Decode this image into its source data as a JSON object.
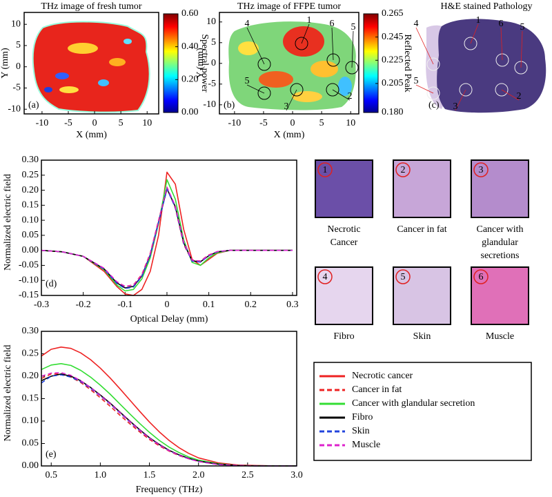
{
  "chart_data": [
    {
      "type": "image",
      "title": "THz image of fresh tumor",
      "panel_label": "(a)",
      "x_label": "X (mm)",
      "y_label": "Y (mm)",
      "xlim": [
        -13.4,
        12.2
      ],
      "ylim": [
        -11.1,
        12.8
      ],
      "xticks": [
        -10,
        -5,
        0,
        5,
        10
      ],
      "yticks": [
        -10,
        -5,
        0,
        5,
        10
      ],
      "colorbar": {
        "label": "Spectral power",
        "lim": [
          0,
          0.6
        ],
        "ticks": [
          {
            "value": 0,
            "label": "0.00"
          },
          {
            "value": 0.2,
            "label": "0.20"
          },
          {
            "value": 0.4,
            "label": "0.40"
          },
          {
            "value": 0.6,
            "label": "0.60"
          }
        ],
        "colormap": "jet"
      }
    },
    {
      "type": "image",
      "title": "THz image of FFPE tumor",
      "panel_label": "(b)",
      "x_label": "X (mm)",
      "y_label": "Y (mm)",
      "xlim": [
        -12.6,
        11.4
      ],
      "ylim": [
        -12.2,
        12.3
      ],
      "xticks": [
        -10,
        -5,
        0,
        5,
        10
      ],
      "yticks": [
        -10,
        -5,
        0,
        5,
        10
      ],
      "colorbar": {
        "label": "Reflected Peak",
        "lim": [
          0.18,
          0.265
        ],
        "ticks": [
          {
            "value": 0.18,
            "label": "0.180"
          },
          0.205,
          0.225,
          0.245,
          0.265
        ],
        "colormap": "jet"
      },
      "annotations": [
        "4",
        "1",
        "6",
        "5",
        "5",
        "3",
        "2"
      ]
    },
    {
      "type": "photo",
      "title": "H&E stained Pathology",
      "panel_label": "(c)",
      "annotations": [
        "4",
        "1",
        "6",
        "5",
        "5",
        "3",
        "2"
      ]
    },
    {
      "type": "line",
      "panel_label": "(d)",
      "x_label": "Optical Delay (mm)",
      "y_label": "Normalized electric field",
      "xlim": [
        -0.3,
        0.31
      ],
      "ylim": [
        -0.15,
        0.3
      ],
      "xticks": [
        -0.3,
        -0.2,
        -0.1,
        0,
        0.1,
        0.2,
        0.3
      ],
      "yticks": [
        -0.15,
        {
          "value": -0.1,
          "label": "-0.10"
        },
        -0.05,
        {
          "value": 0,
          "label": "0.00"
        },
        0.05,
        {
          "value": 0.1,
          "label": "0.10"
        },
        0.15,
        {
          "value": 0.2,
          "label": "0.20"
        },
        0.25,
        {
          "value": 0.3,
          "label": "0.30"
        }
      ],
      "x": [
        -0.3,
        -0.25,
        -0.2,
        -0.15,
        -0.12,
        -0.1,
        -0.08,
        -0.06,
        -0.04,
        -0.02,
        0,
        0.02,
        0.04,
        0.06,
        0.08,
        0.1,
        0.12,
        0.15,
        0.2,
        0.25,
        0.3
      ],
      "series": [
        {
          "name": "Necrotic cancer",
          "color": "#ee2222",
          "linestyle": "solid",
          "values": [
            0,
            -0.005,
            -0.02,
            -0.07,
            -0.12,
            -0.145,
            -0.15,
            -0.13,
            -0.07,
            0.05,
            0.26,
            0.22,
            0.07,
            -0.03,
            -0.05,
            -0.03,
            -0.01,
            0,
            0,
            0,
            0
          ]
        },
        {
          "name": "Cancer in fat",
          "color": "#ee2222",
          "linestyle": "dashed",
          "values": [
            0,
            -0.005,
            -0.02,
            -0.06,
            -0.105,
            -0.12,
            -0.115,
            -0.08,
            -0.01,
            0.1,
            0.21,
            0.14,
            0.02,
            -0.035,
            -0.035,
            -0.015,
            -0.005,
            0,
            0,
            0,
            0
          ]
        },
        {
          "name": "Cancer with glandular secretion",
          "color": "#33dd33",
          "linestyle": "solid",
          "values": [
            0,
            -0.005,
            -0.02,
            -0.065,
            -0.115,
            -0.135,
            -0.13,
            -0.095,
            -0.025,
            0.09,
            0.235,
            0.17,
            0.035,
            -0.04,
            -0.05,
            -0.025,
            -0.008,
            0,
            0,
            0,
            0
          ]
        },
        {
          "name": "Fibro",
          "color": "#000000",
          "linestyle": "solid",
          "values": [
            0,
            -0.005,
            -0.02,
            -0.062,
            -0.108,
            -0.125,
            -0.12,
            -0.085,
            -0.015,
            0.095,
            0.205,
            0.145,
            0.025,
            -0.035,
            -0.038,
            -0.018,
            -0.005,
            0,
            0,
            0,
            0
          ]
        },
        {
          "name": "Skin",
          "color": "#2244dd",
          "linestyle": "dashed",
          "values": [
            0,
            -0.005,
            -0.02,
            -0.063,
            -0.11,
            -0.127,
            -0.122,
            -0.087,
            -0.017,
            0.093,
            0.203,
            0.143,
            0.024,
            -0.036,
            -0.039,
            -0.018,
            -0.005,
            0,
            0,
            0,
            0
          ]
        },
        {
          "name": "Muscle",
          "color": "#dd22cc",
          "linestyle": "dashed",
          "values": [
            0,
            -0.005,
            -0.02,
            -0.06,
            -0.104,
            -0.12,
            -0.116,
            -0.082,
            -0.012,
            0.098,
            0.21,
            0.148,
            0.028,
            -0.033,
            -0.036,
            -0.016,
            -0.004,
            0,
            0,
            0,
            0
          ]
        }
      ]
    },
    {
      "type": "line",
      "panel_label": "(e)",
      "x_label": "Frequency (THz)",
      "y_label": "Normalized electric field",
      "xlim": [
        0.4,
        3.0
      ],
      "ylim": [
        0,
        0.3
      ],
      "xticks": [
        0.5,
        {
          "value": 1,
          "label": "1.0"
        },
        1.5,
        {
          "value": 2,
          "label": "2.0"
        },
        2.5,
        {
          "value": 3,
          "label": "3.0"
        }
      ],
      "yticks": [
        {
          "value": 0,
          "label": "0.00"
        },
        0.05,
        {
          "value": 0.1,
          "label": "0.10"
        },
        0.15,
        {
          "value": 0.2,
          "label": "0.20"
        },
        0.25,
        {
          "value": 0.3,
          "label": "0.30"
        }
      ],
      "x": [
        0.4,
        0.5,
        0.6,
        0.7,
        0.8,
        0.9,
        1.0,
        1.1,
        1.2,
        1.3,
        1.4,
        1.5,
        1.6,
        1.7,
        1.8,
        1.9,
        2.0,
        2.2,
        2.4,
        2.6,
        2.8,
        3.0
      ],
      "series": [
        {
          "color": "#ee2222",
          "linestyle": "solid",
          "values": [
            0.245,
            0.26,
            0.265,
            0.262,
            0.252,
            0.237,
            0.218,
            0.196,
            0.172,
            0.147,
            0.122,
            0.098,
            0.076,
            0.057,
            0.041,
            0.028,
            0.018,
            0.007,
            0.002,
            0.001,
            0,
            0
          ]
        },
        {
          "color": "#ee2222",
          "linestyle": "dashed",
          "values": [
            0.195,
            0.205,
            0.205,
            0.198,
            0.186,
            0.17,
            0.152,
            0.133,
            0.113,
            0.094,
            0.076,
            0.059,
            0.045,
            0.033,
            0.023,
            0.016,
            0.01,
            0.003,
            0.001,
            0,
            0,
            0
          ]
        },
        {
          "color": "#33dd33",
          "linestyle": "solid",
          "values": [
            0.215,
            0.225,
            0.228,
            0.224,
            0.213,
            0.198,
            0.18,
            0.16,
            0.138,
            0.116,
            0.095,
            0.075,
            0.057,
            0.042,
            0.03,
            0.02,
            0.013,
            0.005,
            0.001,
            0,
            0,
            0
          ]
        },
        {
          "color": "#000000",
          "linestyle": "solid",
          "values": [
            0.19,
            0.2,
            0.205,
            0.2,
            0.19,
            0.175,
            0.158,
            0.14,
            0.12,
            0.1,
            0.081,
            0.063,
            0.048,
            0.035,
            0.025,
            0.017,
            0.011,
            0.004,
            0.001,
            0,
            0,
            0
          ]
        },
        {
          "color": "#2244dd",
          "linestyle": "dashed",
          "values": [
            0.185,
            0.2,
            0.203,
            0.198,
            0.188,
            0.173,
            0.156,
            0.138,
            0.118,
            0.098,
            0.079,
            0.062,
            0.047,
            0.034,
            0.024,
            0.016,
            0.01,
            0.003,
            0.001,
            0,
            0,
            0
          ]
        },
        {
          "color": "#dd22cc",
          "linestyle": "dashed",
          "values": [
            0.2,
            0.207,
            0.208,
            0.202,
            0.19,
            0.175,
            0.157,
            0.139,
            0.119,
            0.099,
            0.08,
            0.062,
            0.047,
            0.034,
            0.024,
            0.016,
            0.01,
            0.003,
            0.001,
            0,
            0,
            0
          ]
        }
      ]
    }
  ],
  "histology_tiles": [
    {
      "number": "1",
      "caption": [
        "Necrotic",
        "Cancer"
      ]
    },
    {
      "number": "2",
      "caption": [
        "Cancer in fat"
      ]
    },
    {
      "number": "3",
      "caption": [
        "Cancer with",
        "glandular",
        "secretions"
      ]
    },
    {
      "number": "4",
      "caption": [
        "Fibro"
      ]
    },
    {
      "number": "5",
      "caption": [
        "Skin"
      ]
    },
    {
      "number": "6",
      "caption": [
        "Muscle"
      ]
    }
  ]
}
